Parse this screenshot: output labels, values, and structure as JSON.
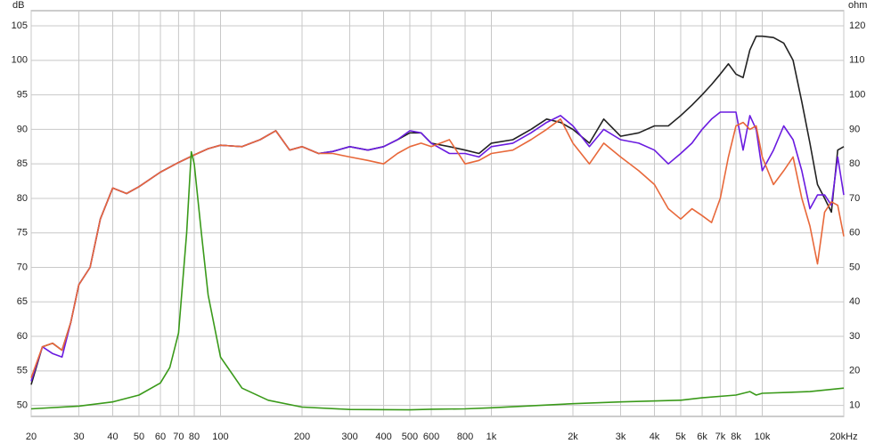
{
  "chart_data": {
    "type": "line",
    "x_scale": "log",
    "grid": true,
    "y_label": "dB",
    "y2_label": "ohm",
    "xlim": [
      20,
      20000
    ],
    "ylim": [
      48.4,
      107.2
    ],
    "y2lim": [
      6.8,
      124.4
    ],
    "xticks": [
      20,
      30,
      40,
      50,
      60,
      70,
      80,
      100,
      200,
      300,
      400,
      500,
      600,
      800,
      {
        "value": 1000,
        "label": "1k"
      },
      {
        "value": 2000,
        "label": "2k"
      },
      {
        "value": 3000,
        "label": "3k"
      },
      {
        "value": 4000,
        "label": "4k"
      },
      {
        "value": 5000,
        "label": "5k"
      },
      {
        "value": 6000,
        "label": "6k"
      },
      {
        "value": 7000,
        "label": "7k"
      },
      {
        "value": 8000,
        "label": "8k"
      },
      {
        "value": 10000,
        "label": "10k"
      },
      {
        "value": 20000,
        "label": "20kHz"
      }
    ],
    "yticks": [
      50,
      55,
      60,
      65,
      70,
      75,
      80,
      85,
      90,
      95,
      100,
      105
    ],
    "y2ticks": [
      10,
      20,
      30,
      40,
      50,
      60,
      70,
      80,
      90,
      100,
      110,
      120
    ],
    "x": [
      20,
      22,
      24,
      26,
      28,
      30,
      33,
      36,
      40,
      45,
      50,
      60,
      70,
      80,
      90,
      100,
      120,
      140,
      160,
      180,
      200,
      230,
      260,
      300,
      350,
      400,
      450,
      500,
      550,
      600,
      700,
      800,
      900,
      1000,
      1200,
      1400,
      1600,
      1800,
      2000,
      2300,
      2600,
      3000,
      3500,
      4000,
      4500,
      5000,
      5500,
      6000,
      6500,
      7000,
      7500,
      8000,
      8500,
      9000,
      9500,
      10000,
      11000,
      12000,
      13000,
      14000,
      15000,
      16000,
      17000,
      18000,
      19000,
      20000
    ],
    "series": [
      {
        "color": "#222222",
        "values": [
          53,
          58.5,
          59,
          58,
          62,
          67.5,
          70,
          77,
          81.5,
          80.7,
          81.7,
          83.8,
          85.2,
          86.3,
          87.2,
          87.7,
          87.5,
          88.5,
          89.8,
          87,
          87.5,
          86.5,
          86.8,
          87.5,
          87,
          87.5,
          88.5,
          89.5,
          89.5,
          88,
          87.5,
          87,
          86.5,
          88,
          88.5,
          90,
          91.5,
          91,
          90,
          88,
          91.5,
          89,
          89.5,
          90.5,
          90.5,
          92,
          93.5,
          95,
          96.5,
          98,
          99.5,
          98,
          97.5,
          101.5,
          103.5,
          103.5,
          103.3,
          102.5,
          100,
          94,
          88,
          82,
          80,
          78,
          87,
          87.5
        ]
      },
      {
        "color": "#6a1be0",
        "values": [
          53.5,
          58.5,
          57.5,
          57,
          62,
          67.5,
          70,
          77,
          81.5,
          80.7,
          81.7,
          83.8,
          85.2,
          86.3,
          87.2,
          87.7,
          87.5,
          88.5,
          89.8,
          87,
          87.5,
          86.5,
          86.8,
          87.5,
          87,
          87.5,
          88.5,
          89.8,
          89.5,
          88,
          86.5,
          86.5,
          86,
          87.5,
          88,
          89.5,
          91,
          92,
          90.5,
          87.5,
          90,
          88.5,
          88,
          87,
          85,
          86.5,
          88,
          90,
          91.5,
          92.5,
          92.5,
          92.5,
          87,
          92,
          90,
          84,
          87,
          90.5,
          88.5,
          84,
          78.5,
          80.5,
          80.5,
          79,
          86,
          80.5
        ]
      },
      {
        "color": "#e8683a",
        "values": [
          54,
          58.5,
          59,
          58,
          62,
          67.5,
          70,
          77,
          81.5,
          80.7,
          81.7,
          83.8,
          85.2,
          86.3,
          87.2,
          87.7,
          87.5,
          88.5,
          89.8,
          87,
          87.5,
          86.5,
          86.5,
          86,
          85.5,
          85,
          86.5,
          87.5,
          88,
          87.5,
          88.5,
          85,
          85.5,
          86.5,
          87,
          88.5,
          90,
          91.5,
          88,
          85,
          88,
          86,
          84,
          82,
          78.5,
          77,
          78.5,
          77.5,
          76.5,
          80,
          86,
          90.5,
          91,
          90,
          90.5,
          86,
          82,
          84,
          86,
          80,
          76,
          70.5,
          78,
          79.5,
          79,
          74.5
        ]
      },
      {
        "color": "#3a9a1a",
        "axis": "y2",
        "x": [
          20,
          30,
          40,
          50,
          60,
          65,
          70,
          75,
          78,
          80,
          85,
          90,
          100,
          120,
          150,
          200,
          300,
          500,
          600,
          800,
          1000,
          2000,
          3000,
          5000,
          6000,
          8000,
          9000,
          9500,
          10000,
          15000,
          20000
        ],
        "values": [
          9,
          9.8,
          11,
          13,
          16.5,
          21,
          31,
          60,
          83.5,
          80,
          60,
          42,
          24,
          15,
          11.5,
          9.5,
          8.8,
          8.7,
          8.9,
          9,
          9.3,
          10.5,
          11,
          11.5,
          12.2,
          13,
          14,
          13,
          13.5,
          14,
          15
        ]
      }
    ]
  }
}
